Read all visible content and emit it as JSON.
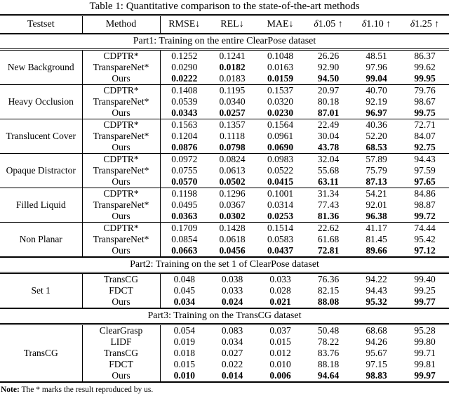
{
  "title": "Table 1: Quantitative comparison to the state-of-the-art methods",
  "header": {
    "testset": "Testset",
    "method": "Method",
    "metrics": [
      {
        "name": "RMSE",
        "arrow": "↓",
        "delta_prefix": ""
      },
      {
        "name": "REL",
        "arrow": "↓",
        "delta_prefix": ""
      },
      {
        "name": "MAE",
        "arrow": "↓",
        "delta_prefix": ""
      },
      {
        "name": "1.05",
        "arrow": "↑",
        "delta_prefix": "δ"
      },
      {
        "name": "1.10",
        "arrow": "↑",
        "delta_prefix": "δ"
      },
      {
        "name": "1.25",
        "arrow": "↑",
        "delta_prefix": "δ"
      }
    ]
  },
  "parts": [
    {
      "label": "Part1: Training on the entire ClearPose dataset",
      "groups": [
        {
          "testset": "New Background",
          "rows": [
            {
              "method": "CDPTR*",
              "values": [
                "0.1252",
                "0.1241",
                "0.1048",
                "26.26",
                "48.51",
                "86.37"
              ],
              "bold": [
                false,
                false,
                false,
                false,
                false,
                false
              ]
            },
            {
              "method": "TranspareNet*",
              "values": [
                "0.0290",
                "0.0182",
                "0.0163",
                "92.90",
                "97.96",
                "99.62"
              ],
              "bold": [
                false,
                true,
                false,
                false,
                false,
                false
              ]
            },
            {
              "method": "Ours",
              "values": [
                "0.0222",
                "0.0183",
                "0.0159",
                "94.50",
                "99.04",
                "99.95"
              ],
              "bold": [
                true,
                false,
                true,
                true,
                true,
                true
              ]
            }
          ]
        },
        {
          "testset": "Heavy Occlusion",
          "rows": [
            {
              "method": "CDPTR*",
              "values": [
                "0.1408",
                "0.1195",
                "0.1537",
                "20.97",
                "40.70",
                "79.76"
              ],
              "bold": [
                false,
                false,
                false,
                false,
                false,
                false
              ]
            },
            {
              "method": "TranspareNet*",
              "values": [
                "0.0539",
                "0.0340",
                "0.0320",
                "80.18",
                "92.19",
                "98.67"
              ],
              "bold": [
                false,
                false,
                false,
                false,
                false,
                false
              ]
            },
            {
              "method": "Ours",
              "values": [
                "0.0343",
                "0.0257",
                "0.0230",
                "87.01",
                "96.97",
                "99.75"
              ],
              "bold": [
                true,
                true,
                true,
                true,
                true,
                true
              ]
            }
          ]
        },
        {
          "testset": "Translucent Cover",
          "rows": [
            {
              "method": "CDPTR*",
              "values": [
                "0.1563",
                "0.1357",
                "0.1564",
                "22.49",
                "40.36",
                "72.71"
              ],
              "bold": [
                false,
                false,
                false,
                false,
                false,
                false
              ]
            },
            {
              "method": "TranspareNet*",
              "values": [
                "0.1204",
                "0.1118",
                "0.0961",
                "30.04",
                "52.20",
                "84.07"
              ],
              "bold": [
                false,
                false,
                false,
                false,
                false,
                false
              ]
            },
            {
              "method": "Ours",
              "values": [
                "0.0876",
                "0.0798",
                "0.0690",
                "43.78",
                "68.53",
                "92.75"
              ],
              "bold": [
                true,
                true,
                true,
                true,
                true,
                true
              ]
            }
          ]
        },
        {
          "testset": "Opaque Distractor",
          "rows": [
            {
              "method": "CDPTR*",
              "values": [
                "0.0972",
                "0.0824",
                "0.0983",
                "32.04",
                "57.89",
                "94.43"
              ],
              "bold": [
                false,
                false,
                false,
                false,
                false,
                false
              ]
            },
            {
              "method": "TranspareNet*",
              "values": [
                "0.0755",
                "0.0613",
                "0.0522",
                "55.68",
                "75.79",
                "97.59"
              ],
              "bold": [
                false,
                false,
                false,
                false,
                false,
                false
              ]
            },
            {
              "method": "Ours",
              "values": [
                "0.0570",
                "0.0502",
                "0.0415",
                "63.11",
                "87.13",
                "97.65"
              ],
              "bold": [
                true,
                true,
                true,
                true,
                true,
                true
              ]
            }
          ]
        },
        {
          "testset": "Filled Liquid",
          "rows": [
            {
              "method": "CDPTR*",
              "values": [
                "0.1198",
                "0.1296",
                "0.1001",
                "31.34",
                "54.21",
                "84.86"
              ],
              "bold": [
                false,
                false,
                false,
                false,
                false,
                false
              ]
            },
            {
              "method": "TranspareNet*",
              "values": [
                "0.0495",
                "0.0367",
                "0.0314",
                "77.43",
                "92.01",
                "98.87"
              ],
              "bold": [
                false,
                false,
                false,
                false,
                false,
                false
              ]
            },
            {
              "method": "Ours",
              "values": [
                "0.0363",
                "0.0302",
                "0.0253",
                "81.36",
                "96.38",
                "99.72"
              ],
              "bold": [
                true,
                true,
                true,
                true,
                true,
                true
              ]
            }
          ]
        },
        {
          "testset": "Non Planar",
          "rows": [
            {
              "method": "CDPTR*",
              "values": [
                "0.1709",
                "0.1428",
                "0.1514",
                "22.62",
                "41.17",
                "74.44"
              ],
              "bold": [
                false,
                false,
                false,
                false,
                false,
                false
              ]
            },
            {
              "method": "TranspareNet*",
              "values": [
                "0.0854",
                "0.0618",
                "0.0583",
                "61.68",
                "81.45",
                "95.42"
              ],
              "bold": [
                false,
                false,
                false,
                false,
                false,
                false
              ]
            },
            {
              "method": "Ours",
              "values": [
                "0.0663",
                "0.0456",
                "0.0437",
                "72.81",
                "89.66",
                "97.12"
              ],
              "bold": [
                true,
                true,
                true,
                true,
                true,
                true
              ]
            }
          ]
        }
      ]
    },
    {
      "label": "Part2: Training on the set 1 of ClearPose dataset",
      "groups": [
        {
          "testset": "Set 1",
          "rows": [
            {
              "method": "TransCG",
              "values": [
                "0.048",
                "0.038",
                "0.033",
                "76.36",
                "94.22",
                "99.40"
              ],
              "bold": [
                false,
                false,
                false,
                false,
                false,
                false
              ]
            },
            {
              "method": "FDCT",
              "values": [
                "0.045",
                "0.033",
                "0.028",
                "82.15",
                "94.43",
                "99.25"
              ],
              "bold": [
                false,
                false,
                false,
                false,
                false,
                false
              ]
            },
            {
              "method": "Ours",
              "values": [
                "0.034",
                "0.024",
                "0.021",
                "88.08",
                "95.32",
                "99.77"
              ],
              "bold": [
                true,
                true,
                true,
                true,
                true,
                true
              ]
            }
          ]
        }
      ]
    },
    {
      "label": "Part3: Training on the TransCG dataset",
      "groups": [
        {
          "testset": "TransCG",
          "rows": [
            {
              "method": "ClearGrasp",
              "values": [
                "0.054",
                "0.083",
                "0.037",
                "50.48",
                "68.68",
                "95.28"
              ],
              "bold": [
                false,
                false,
                false,
                false,
                false,
                false
              ]
            },
            {
              "method": "LIDF",
              "values": [
                "0.019",
                "0.034",
                "0.015",
                "78.22",
                "94.26",
                "99.80"
              ],
              "bold": [
                false,
                false,
                false,
                false,
                false,
                false
              ]
            },
            {
              "method": "TransCG",
              "values": [
                "0.018",
                "0.027",
                "0.012",
                "83.76",
                "95.67",
                "99.71"
              ],
              "bold": [
                false,
                false,
                false,
                false,
                false,
                false
              ]
            },
            {
              "method": "FDCT",
              "values": [
                "0.015",
                "0.022",
                "0.010",
                "88.18",
                "97.15",
                "99.81"
              ],
              "bold": [
                false,
                false,
                false,
                false,
                false,
                false
              ]
            },
            {
              "method": "Ours",
              "values": [
                "0.010",
                "0.014",
                "0.006",
                "94.64",
                "98.83",
                "99.97"
              ],
              "bold": [
                true,
                true,
                true,
                true,
                true,
                true
              ]
            }
          ]
        }
      ]
    }
  ],
  "note": {
    "label": "Note:",
    "text": " The * marks the result reproduced by us."
  }
}
